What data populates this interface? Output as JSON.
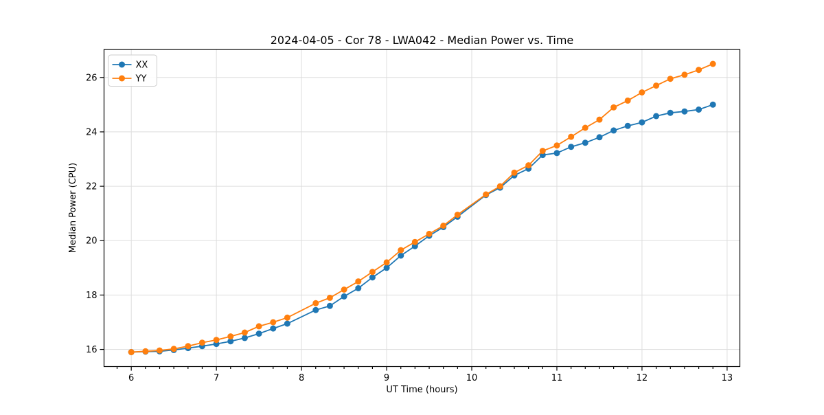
{
  "figure": {
    "background": "#ffffff"
  },
  "chart_data": {
    "type": "line",
    "title": "2024-04-05 - Cor 78 - LWA042 - Median Power vs. Time",
    "xlabel": "UT Time (hours)",
    "ylabel": "Median Power (CPU)",
    "xlim": [
      5.68,
      13.15
    ],
    "ylim": [
      15.37,
      27.03
    ],
    "xticks": [
      6,
      7,
      8,
      9,
      10,
      11,
      12,
      13
    ],
    "yticks": [
      16,
      18,
      20,
      22,
      24,
      26
    ],
    "x_minor_step": 0.1666667,
    "grid": true,
    "grid_color": "#dddddd",
    "legend_position": "upper left",
    "marker": "circle",
    "x": [
      6.0,
      6.167,
      6.333,
      6.5,
      6.667,
      6.833,
      7.0,
      7.167,
      7.333,
      7.5,
      7.667,
      7.833,
      8.167,
      8.333,
      8.5,
      8.667,
      8.833,
      9.0,
      9.167,
      9.333,
      9.5,
      9.667,
      9.833,
      10.167,
      10.333,
      10.5,
      10.667,
      10.833,
      11.0,
      11.167,
      11.333,
      11.5,
      11.667,
      11.833,
      12.0,
      12.167,
      12.333,
      12.5,
      12.667,
      12.833
    ],
    "series": [
      {
        "name": "XX",
        "color": "#1f77b4",
        "values": [
          15.9,
          15.92,
          15.93,
          15.98,
          16.05,
          16.12,
          16.2,
          16.3,
          16.42,
          16.58,
          16.77,
          16.95,
          17.45,
          17.6,
          17.95,
          18.25,
          18.65,
          19.0,
          19.45,
          19.8,
          20.18,
          20.5,
          20.88,
          21.68,
          21.95,
          22.4,
          22.65,
          23.15,
          23.22,
          23.45,
          23.6,
          23.8,
          24.05,
          24.22,
          24.35,
          24.58,
          24.7,
          24.75,
          24.82,
          25.0
        ]
      },
      {
        "name": "YY",
        "color": "#ff7f0e",
        "values": [
          15.9,
          15.93,
          15.96,
          16.02,
          16.12,
          16.25,
          16.35,
          16.48,
          16.62,
          16.85,
          17.0,
          17.17,
          17.7,
          17.9,
          18.2,
          18.5,
          18.85,
          19.2,
          19.65,
          19.95,
          20.25,
          20.55,
          20.95,
          21.7,
          22.0,
          22.5,
          22.77,
          23.3,
          23.5,
          23.82,
          24.15,
          24.45,
          24.9,
          25.15,
          25.45,
          25.7,
          25.95,
          26.1,
          26.28,
          26.5
        ]
      }
    ]
  }
}
